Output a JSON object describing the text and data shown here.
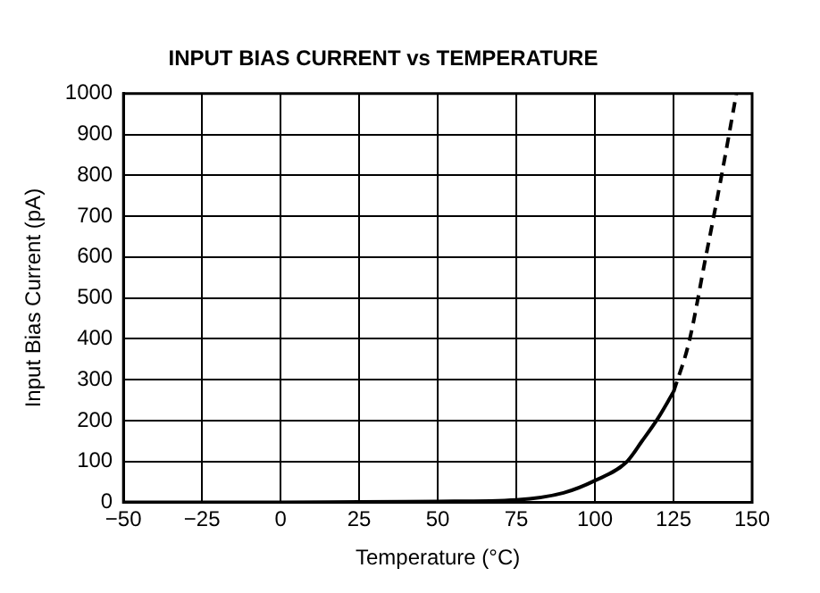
{
  "chart_data": {
    "type": "line",
    "title": "INPUT BIAS CURRENT vs TEMPERATURE",
    "xlabel": "Temperature (°C)",
    "ylabel": "Input Bias Current (pA)",
    "xlim": [
      -50,
      150
    ],
    "xticks": [
      -50,
      -25,
      0,
      25,
      50,
      75,
      100,
      125,
      150
    ],
    "ylim": [
      0,
      1000
    ],
    "yticks": [
      0,
      100,
      200,
      300,
      400,
      500,
      600,
      700,
      800,
      900,
      1000
    ],
    "grid": true,
    "marker": "none",
    "series": [
      {
        "color": "#000000",
        "line_style": "solid",
        "x": [
          -50,
          0,
          25,
          50,
          75,
          90,
          100,
          110,
          115,
          120,
          125
        ],
        "values": [
          0,
          0,
          1,
          2,
          6,
          23,
          53,
          98,
          150,
          205,
          270
        ]
      },
      {
        "color": "#000000",
        "line_style": "dashed",
        "x": [
          125,
          130,
          135,
          140,
          145
        ],
        "values": [
          270,
          394,
          590,
          788,
          1000
        ]
      }
    ]
  }
}
